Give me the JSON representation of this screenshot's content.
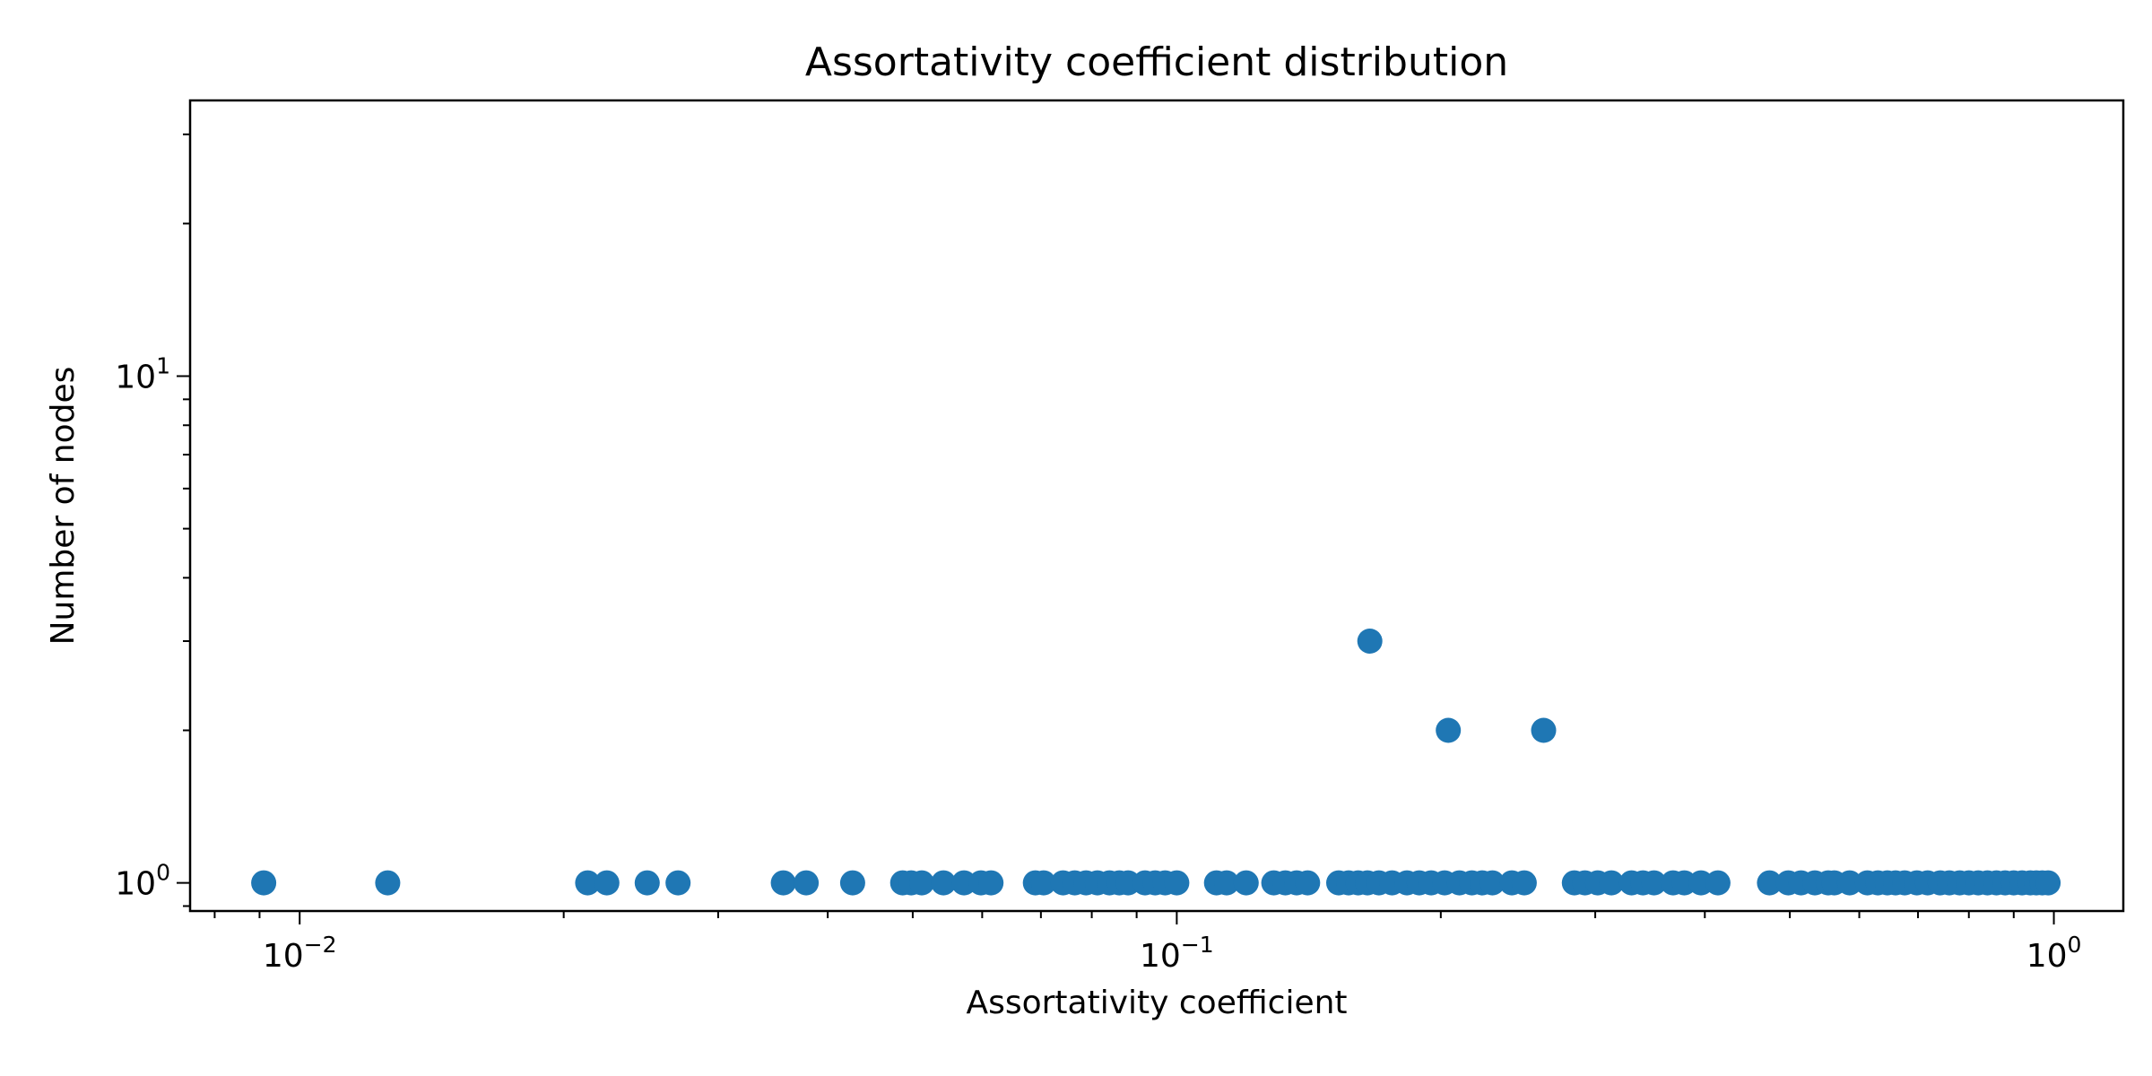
{
  "chart_data": {
    "type": "scatter",
    "title": "Assortativity coefficient distribution",
    "xlabel": "Assortativity coefficient",
    "ylabel": "Number of nodes",
    "xscale": "log",
    "yscale": "log",
    "xlim": [
      0.0075,
      1.2
    ],
    "ylim": [
      0.88,
      35
    ],
    "grid": false,
    "marker_color": "#1f77b4",
    "xticks": [
      {
        "base": "10",
        "exp": "−2",
        "value": 0.01
      },
      {
        "base": "10",
        "exp": "−1",
        "value": 0.1
      },
      {
        "base": "10",
        "exp": "0",
        "value": 1
      }
    ],
    "yticks": [
      {
        "base": "10",
        "exp": "0",
        "value": 1
      },
      {
        "base": "10",
        "exp": "1",
        "value": 10
      }
    ],
    "x": [
      0.0091,
      0.0126,
      0.0213,
      0.0224,
      0.0249,
      0.027,
      0.0356,
      0.0378,
      0.0427,
      0.0487,
      0.0498,
      0.0512,
      0.0542,
      0.0572,
      0.0598,
      0.0614,
      0.069,
      0.0705,
      0.0742,
      0.0765,
      0.0788,
      0.0812,
      0.0838,
      0.086,
      0.088,
      0.092,
      0.0945,
      0.097,
      0.1,
      0.111,
      0.114,
      0.12,
      0.129,
      0.133,
      0.137,
      0.141,
      0.153,
      0.157,
      0.161,
      0.165,
      0.17,
      0.176,
      0.183,
      0.189,
      0.195,
      0.202,
      0.21,
      0.217,
      0.223,
      0.229,
      0.241,
      0.249,
      0.284,
      0.292,
      0.302,
      0.313,
      0.33,
      0.34,
      0.35,
      0.368,
      0.379,
      0.396,
      0.414,
      0.474,
      0.498,
      0.515,
      0.534,
      0.553,
      0.562,
      0.585,
      0.613,
      0.63,
      0.646,
      0.66,
      0.676,
      0.698,
      0.718,
      0.742,
      0.76,
      0.781,
      0.8,
      0.82,
      0.84,
      0.86,
      0.88,
      0.9,
      0.92,
      0.94,
      0.955,
      0.97,
      0.985,
      0.166,
      0.204,
      0.262
    ],
    "y": [
      1,
      1,
      1,
      1,
      1,
      1,
      1,
      1,
      1,
      1,
      1,
      1,
      1,
      1,
      1,
      1,
      1,
      1,
      1,
      1,
      1,
      1,
      1,
      1,
      1,
      1,
      1,
      1,
      1,
      1,
      1,
      1,
      1,
      1,
      1,
      1,
      1,
      1,
      1,
      1,
      1,
      1,
      1,
      1,
      1,
      1,
      1,
      1,
      1,
      1,
      1,
      1,
      1,
      1,
      1,
      1,
      1,
      1,
      1,
      1,
      1,
      1,
      1,
      1,
      1,
      1,
      1,
      1,
      1,
      1,
      1,
      1,
      1,
      1,
      1,
      1,
      1,
      1,
      1,
      1,
      1,
      1,
      1,
      1,
      1,
      1,
      1,
      1,
      1,
      1,
      1,
      3,
      2,
      2
    ]
  }
}
